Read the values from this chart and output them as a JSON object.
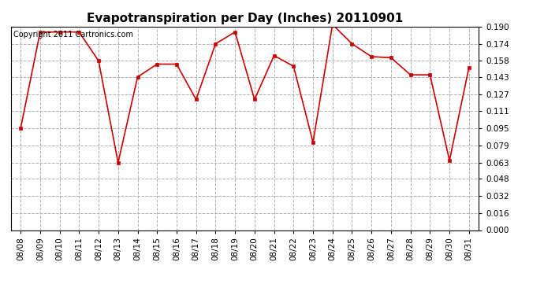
{
  "title": "Evapotranspiration per Day (Inches) 20110901",
  "copyright_text": "Copyright 2011 Cartronics.com",
  "dates": [
    "08/08",
    "08/09",
    "08/10",
    "08/11",
    "08/12",
    "08/13",
    "08/14",
    "08/15",
    "08/16",
    "08/17",
    "08/18",
    "08/19",
    "08/20",
    "08/21",
    "08/22",
    "08/23",
    "08/24",
    "08/25",
    "08/26",
    "08/27",
    "08/28",
    "08/29",
    "08/30",
    "08/31"
  ],
  "values": [
    0.095,
    0.185,
    0.185,
    0.185,
    0.158,
    0.063,
    0.143,
    0.155,
    0.155,
    0.122,
    0.174,
    0.185,
    0.122,
    0.163,
    0.153,
    0.082,
    0.192,
    0.174,
    0.162,
    0.161,
    0.145,
    0.145,
    0.065,
    0.152
  ],
  "line_color": "#cc0000",
  "marker_color": "#cc0000",
  "bg_color": "#ffffff",
  "grid_color": "#b0b0b0",
  "ylim": [
    0.0,
    0.19
  ],
  "yticks": [
    0.0,
    0.016,
    0.032,
    0.048,
    0.063,
    0.079,
    0.095,
    0.111,
    0.127,
    0.143,
    0.158,
    0.174,
    0.19
  ],
  "title_fontsize": 11,
  "copyright_fontsize": 7,
  "tick_fontsize": 7.5,
  "figwidth": 6.9,
  "figheight": 3.75,
  "dpi": 100
}
